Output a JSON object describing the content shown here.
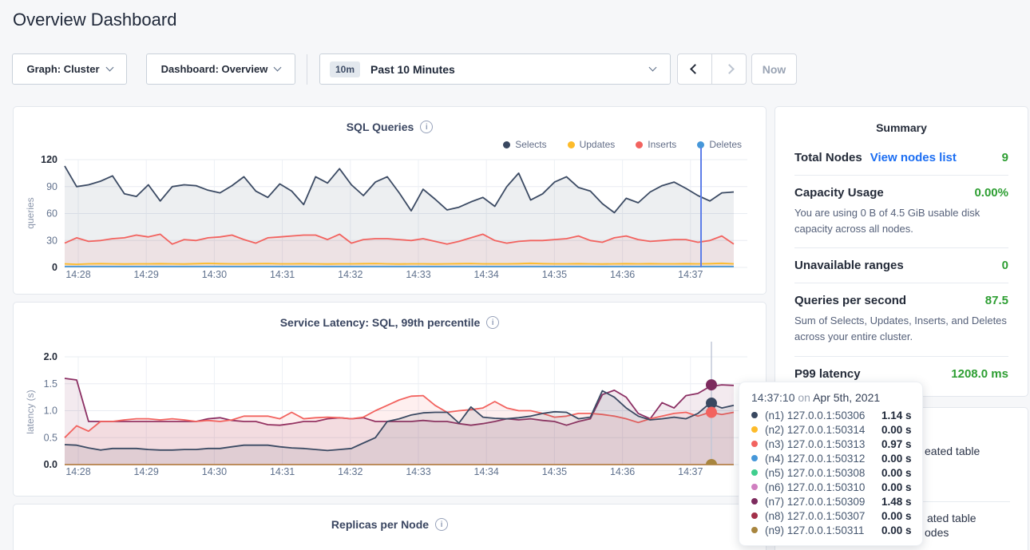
{
  "page": {
    "title": "Overview Dashboard"
  },
  "toolbar": {
    "graph_dropdown": "Graph: Cluster",
    "dashboard_dropdown": "Dashboard: Overview",
    "time_badge": "10m",
    "time_label": "Past 10 Minutes",
    "now_button": "Now"
  },
  "colors": {
    "positive_green": "#2d9e32",
    "link_blue": "#1c6ef2",
    "hover_line_blue": "#5d7ee8"
  },
  "summary": {
    "title": "Summary",
    "rows": [
      {
        "label": "Total Nodes",
        "link": "View nodes list",
        "value": "9"
      },
      {
        "label": "Capacity Usage",
        "value": "0.00%",
        "subtext": "You are using 0 B of 4.5 GiB usable disk capacity across all nodes."
      },
      {
        "label": "Unavailable ranges",
        "value": "0"
      },
      {
        "label": "Queries per second",
        "value": "87.5",
        "subtext": "Sum of Selects, Updates, Inserts, and Deletes across your entire cluster."
      },
      {
        "label": "P99 latency",
        "value": "1208.0 ms"
      }
    ]
  },
  "tooltip": {
    "time": "14:37:10",
    "on": "on",
    "date": "Apr 5th, 2021",
    "rows": [
      {
        "node": "(n1) 127.0.0.1:50306",
        "value": "1.14 s",
        "color": "#394860"
      },
      {
        "node": "(n2) 127.0.0.1:50314",
        "value": "0.00 s",
        "color": "#fdbb2a"
      },
      {
        "node": "(n3) 127.0.0.1:50313",
        "value": "0.97 s",
        "color": "#f2635f"
      },
      {
        "node": "(n4) 127.0.0.1:50312",
        "value": "0.00 s",
        "color": "#4697d9"
      },
      {
        "node": "(n5) 127.0.0.1:50308",
        "value": "0.00 s",
        "color": "#3fce8d"
      },
      {
        "node": "(n6) 127.0.0.1:50310",
        "value": "0.00 s",
        "color": "#d07fc0"
      },
      {
        "node": "(n7) 127.0.0.1:50309",
        "value": "1.48 s",
        "color": "#7d2b5e"
      },
      {
        "node": "(n8) 127.0.0.1:50307",
        "value": "0.00 s",
        "color": "#a23049"
      },
      {
        "node": "(n9) 127.0.0.1:50311",
        "value": "0.00 s",
        "color": "#a8853e"
      }
    ]
  },
  "events_panel": {
    "fragment_1": "eated table",
    "fragment_2": "ated table",
    "fragment_3": "odes"
  },
  "chart_data": [
    {
      "type": "line",
      "title": "SQL Queries",
      "ylabel": "queries",
      "ylim": [
        0,
        120
      ],
      "yticks": [
        {
          "v": 0,
          "label": "0",
          "bold": true
        },
        {
          "v": 30,
          "label": "30"
        },
        {
          "v": 60,
          "label": "60"
        },
        {
          "v": 90,
          "label": "90"
        },
        {
          "v": 120,
          "label": "120",
          "bold": true
        }
      ],
      "xticklabels": [
        "14:28",
        "14:29",
        "14:30",
        "14:31",
        "14:32",
        "14:33",
        "14:34",
        "14:35",
        "14:36",
        "14:37"
      ],
      "legend": [
        {
          "name": "Selects",
          "color": "#394860"
        },
        {
          "name": "Updates",
          "color": "#fdbb2a"
        },
        {
          "name": "Inserts",
          "color": "#f2635f"
        },
        {
          "name": "Deletes",
          "color": "#4697d9"
        }
      ],
      "hover_time": "14:37:10",
      "series": [
        {
          "name": "Selects",
          "color": "#3b4a63",
          "fill": "rgba(59,74,99,0.09)",
          "values": [
            113,
            90,
            92,
            96,
            102,
            82,
            79,
            92,
            74,
            90,
            92,
            91,
            86,
            83,
            91,
            101,
            85,
            78,
            93,
            85,
            70,
            101,
            94,
            110,
            92,
            80,
            95,
            101,
            83,
            63,
            87,
            76,
            64,
            67,
            73,
            78,
            68,
            90,
            105,
            75,
            82,
            95,
            101,
            89,
            85,
            71,
            61,
            77,
            72,
            84,
            91,
            95,
            88,
            80,
            74,
            83,
            84
          ]
        },
        {
          "name": "Inserts",
          "color": "#f2635f",
          "fill": "rgba(242,99,95,0.09)",
          "values": [
            27,
            33,
            29,
            30,
            32,
            33,
            36,
            34,
            37,
            26,
            31,
            30,
            33,
            34,
            36,
            31,
            27,
            33,
            34,
            35,
            36,
            36,
            31,
            37,
            27,
            31,
            32,
            32,
            31,
            30,
            32,
            29,
            26,
            29,
            33,
            37,
            30,
            27,
            29,
            30,
            30,
            31,
            32,
            35,
            30,
            28,
            33,
            35,
            31,
            29,
            30,
            31,
            31,
            28,
            30,
            35,
            26
          ]
        },
        {
          "name": "Updates",
          "color": "#fdbb2a",
          "fill": "rgba(253,187,42,0.12)",
          "values": [
            4,
            3.5,
            4,
            4.2,
            4,
            3.8,
            4,
            4,
            4.2,
            4,
            3.8,
            4.2,
            4.5,
            4.2,
            4,
            4,
            4.2,
            4.4,
            4,
            4,
            4.2,
            4,
            3.8,
            4,
            4,
            4.2,
            4.4,
            4,
            3.8,
            4,
            4,
            3.8,
            4,
            4.2,
            4.4,
            4,
            4,
            4,
            4.2,
            4.6,
            4.2,
            4,
            4,
            4.2,
            4,
            3.8,
            4,
            4.2,
            4,
            4.2,
            4,
            4,
            4.2,
            4,
            4.2,
            4.6,
            4
          ]
        },
        {
          "name": "Deletes",
          "color": "#4697d9",
          "fill": "none",
          "const": 1
        }
      ]
    },
    {
      "type": "line",
      "title": "Service Latency: SQL, 99th percentile",
      "ylabel": "latency (s)",
      "ylim": [
        0,
        2
      ],
      "yticks": [
        {
          "v": 0,
          "label": "0.0",
          "bold": true
        },
        {
          "v": 0.5,
          "label": "0.5"
        },
        {
          "v": 1,
          "label": "1.0"
        },
        {
          "v": 1.5,
          "label": "1.5"
        },
        {
          "v": 2,
          "label": "2.0",
          "bold": true
        }
      ],
      "xticklabels": [
        "14:28",
        "14:29",
        "14:30",
        "14:31",
        "14:32",
        "14:33",
        "14:34",
        "14:35",
        "14:36",
        "14:37"
      ],
      "hover_time": "14:37:10",
      "series": [
        {
          "name": "(n7) 127.0.0.1:50309",
          "color": "#8b2f63",
          "fill": "rgba(139,47,99,0.10)",
          "values": [
            1.6,
            1.57,
            0.8,
            0.8,
            0.8,
            0.8,
            0.8,
            0.8,
            0.8,
            0.8,
            0.8,
            0.8,
            0.85,
            0.87,
            0.82,
            0.8,
            0.8,
            0.74,
            0.73,
            0.76,
            0.8,
            0.8,
            0.85,
            0.87,
            0.85,
            0.87,
            0.8,
            0.8,
            0.8,
            0.8,
            0.82,
            0.8,
            0.8,
            0.76,
            0.73,
            0.76,
            0.8,
            0.85,
            0.83,
            0.85,
            0.82,
            0.8,
            0.73,
            0.8,
            0.85,
            1.3,
            1.38,
            1.25,
            0.95,
            0.85,
            1.15,
            1.05,
            1.28,
            1.32,
            1.45,
            1.48,
            1.47
          ]
        },
        {
          "name": "(n3) 127.0.0.1:50313",
          "color": "#f2635f",
          "fill": "rgba(242,99,95,0.10)",
          "values": [
            0.5,
            0.72,
            0.62,
            0.8,
            0.8,
            0.83,
            0.85,
            0.85,
            0.83,
            0.85,
            0.83,
            0.8,
            0.82,
            0.8,
            0.83,
            0.9,
            0.9,
            0.9,
            0.85,
            0.97,
            0.85,
            0.87,
            0.88,
            0.87,
            0.85,
            0.88,
            1.0,
            1.1,
            1.2,
            1.27,
            1.28,
            1.1,
            0.97,
            1.0,
            1.02,
            1.05,
            1.17,
            1.05,
            1.0,
            1.0,
            0.95,
            0.88,
            0.9,
            0.95,
            0.95,
            0.93,
            0.9,
            0.85,
            0.78,
            0.85,
            0.9,
            0.95,
            0.97,
            0.9,
            0.97,
            0.93,
            0.97
          ]
        },
        {
          "name": "(n1) 127.0.0.1:50306",
          "color": "#3b4a63",
          "fill": "rgba(59,74,99,0.10)",
          "values": [
            0.37,
            0.36,
            0.31,
            0.27,
            0.3,
            0.3,
            0.3,
            0.28,
            0.27,
            0.27,
            0.28,
            0.28,
            0.3,
            0.3,
            0.33,
            0.36,
            0.36,
            0.36,
            0.33,
            0.31,
            0.3,
            0.28,
            0.26,
            0.28,
            0.3,
            0.4,
            0.5,
            0.8,
            0.85,
            0.92,
            0.96,
            0.97,
            0.97,
            0.77,
            1.07,
            0.88,
            0.86,
            0.85,
            0.87,
            0.9,
            0.95,
            0.98,
            0.97,
            0.85,
            0.88,
            1.37,
            1.25,
            1.05,
            0.9,
            0.83,
            0.85,
            0.88,
            0.85,
            0.95,
            1.14,
            1.05,
            1.1
          ]
        },
        {
          "name": "(n9) 127.0.0.1:50311",
          "color": "#b5814a",
          "fill": "none",
          "const": 0
        }
      ],
      "hover_dots": [
        {
          "value": 1.48,
          "color": "#7d2b5e"
        },
        {
          "value": 1.14,
          "color": "#394860"
        },
        {
          "value": 0.97,
          "color": "#f2635f"
        },
        {
          "value": 0,
          "color": "#a8853e"
        }
      ]
    },
    {
      "type": "line",
      "title": "Replicas per Node"
    }
  ]
}
